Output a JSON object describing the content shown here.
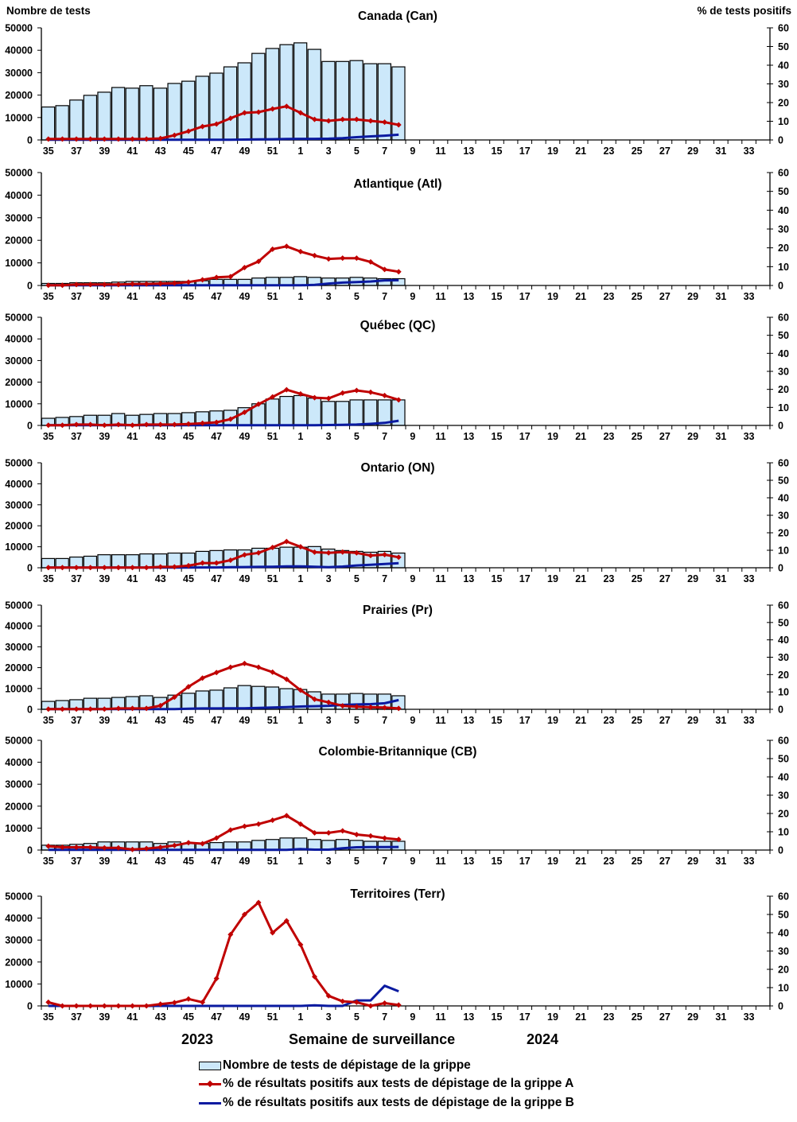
{
  "left_axis_title": "Nombre de tests",
  "right_axis_title": "% de tests positifs",
  "footer": {
    "year_left": "2023",
    "xlabel": "Semaine de surveillance",
    "year_right": "2024"
  },
  "legend": {
    "bars": "Nombre de tests de dépistage de la grippe",
    "line_a": "% de résultats positifs aux tests de dépistage de la grippe A",
    "line_b": "% de résultats positifs aux tests de dépistage de la grippe B"
  },
  "colors": {
    "bar_fill": "#cce8fa",
    "bar_stroke": "#000000",
    "line_a": "#c00000",
    "line_b": "#0a1aa0"
  },
  "chart_data": [
    {
      "type": "bar+line",
      "title": "Canada (Can)",
      "weeks_all": [
        35,
        36,
        37,
        38,
        39,
        40,
        41,
        42,
        43,
        44,
        45,
        46,
        47,
        48,
        49,
        50,
        51,
        52,
        1,
        2,
        3,
        4,
        5,
        6,
        7,
        8,
        9,
        10,
        11,
        12,
        13,
        14,
        15,
        16,
        17,
        18,
        19,
        20,
        21,
        22,
        23,
        24,
        25,
        26,
        27,
        28,
        29,
        30,
        31,
        32,
        33,
        34
      ],
      "tick_labels": [
        "35",
        "37",
        "39",
        "41",
        "43",
        "45",
        "47",
        "49",
        "51",
        "1",
        "3",
        "5",
        "7",
        "9",
        "11",
        "13",
        "15",
        "17",
        "19",
        "21",
        "23",
        "25",
        "27",
        "29",
        "31",
        "33"
      ],
      "left_ylim": [
        0,
        50000
      ],
      "left_ticks": [
        "0",
        "10000",
        "20000",
        "30000",
        "40000",
        "50000"
      ],
      "right_ylim": [
        0,
        60
      ],
      "right_ticks": [
        "0",
        "10",
        "20",
        "30",
        "40",
        "50",
        "60"
      ],
      "tests": [
        14700,
        15300,
        17800,
        19900,
        21300,
        23400,
        23100,
        24200,
        23100,
        25200,
        26200,
        28400,
        29800,
        32600,
        34400,
        38600,
        40800,
        42500,
        43300,
        40400,
        35000,
        35000,
        35400,
        34000,
        34000,
        32600
      ],
      "pct_a": [
        0.5,
        0.5,
        0.5,
        0.5,
        0.5,
        0.5,
        0.5,
        0.5,
        0.8,
        2.5,
        4.7,
        7.2,
        8.5,
        11.6,
        14.5,
        14.9,
        16.6,
        18.0,
        14.5,
        11.0,
        10.2,
        11.0,
        11.0,
        10.2,
        9.5,
        8.1
      ],
      "pct_b": [
        0.1,
        0.1,
        0.1,
        0.1,
        0.1,
        0.1,
        0.1,
        0.1,
        0.1,
        0.1,
        0.1,
        0.1,
        0.1,
        0.1,
        0.2,
        0.3,
        0.4,
        0.5,
        0.6,
        0.6,
        0.7,
        1.0,
        1.5,
        1.9,
        2.3,
        2.8
      ]
    },
    {
      "type": "bar+line",
      "title": "Atlantique (Atl)",
      "left_ylim": [
        0,
        50000
      ],
      "left_ticks": [
        "0",
        "10000",
        "20000",
        "30000",
        "40000",
        "50000"
      ],
      "right_ylim": [
        0,
        60
      ],
      "right_ticks": [
        "0",
        "10",
        "20",
        "30",
        "40",
        "50",
        "60"
      ],
      "tests": [
        900,
        900,
        1200,
        1200,
        1200,
        1500,
        1800,
        1800,
        1800,
        1800,
        1800,
        2100,
        2700,
        2700,
        2700,
        3300,
        3600,
        3600,
        3900,
        3600,
        3300,
        3300,
        3600,
        3300,
        3000,
        3000
      ],
      "pct_a": [
        0.1,
        0.1,
        0.5,
        0.5,
        0.5,
        0.5,
        0.8,
        0.8,
        1.0,
        1.2,
        1.8,
        3.0,
        4.3,
        4.7,
        9.5,
        12.8,
        19.3,
        20.8,
        18.0,
        15.9,
        14.1,
        14.5,
        14.5,
        12.5,
        8.5,
        7.3
      ],
      "pct_b": [
        0.1,
        0.1,
        0.1,
        0.1,
        0.1,
        0.1,
        0.1,
        0.1,
        0.1,
        0.1,
        0.1,
        0.1,
        0.1,
        0.1,
        0.1,
        0.1,
        0.1,
        0.1,
        0.1,
        0.3,
        1.0,
        1.5,
        1.8,
        2.1,
        2.7,
        2.8
      ]
    },
    {
      "type": "bar+line",
      "title": "Québec (QC)",
      "left_ylim": [
        0,
        50000
      ],
      "left_ticks": [
        "0",
        "10000",
        "20000",
        "30000",
        "40000",
        "50000"
      ],
      "right_ylim": [
        0,
        60
      ],
      "right_ticks": [
        "0",
        "10",
        "20",
        "30",
        "40",
        "50",
        "60"
      ],
      "tests": [
        3300,
        3700,
        4100,
        4700,
        4700,
        5500,
        4700,
        5100,
        5500,
        5500,
        5900,
        6300,
        6700,
        7000,
        8200,
        10000,
        12200,
        13400,
        13800,
        12600,
        11100,
        11100,
        11800,
        11800,
        11800,
        11800
      ],
      "pct_a": [
        0.1,
        0.1,
        0.5,
        0.5,
        0.1,
        0.5,
        0.1,
        0.5,
        0.5,
        0.5,
        0.8,
        1.2,
        1.7,
        3.5,
        7.3,
        11.8,
        15.8,
        19.8,
        17.5,
        15.4,
        15.0,
        18.0,
        19.4,
        18.4,
        16.6,
        14.2
      ],
      "pct_b": [
        0.1,
        0.1,
        0.1,
        0.1,
        0.1,
        0.1,
        0.1,
        0.1,
        0.1,
        0.1,
        0.1,
        0.1,
        0.1,
        0.1,
        0.1,
        0.1,
        0.1,
        0.1,
        0.1,
        0.1,
        0.2,
        0.3,
        0.5,
        0.9,
        1.4,
        2.6
      ]
    },
    {
      "type": "bar+line",
      "title": "Ontario (ON)",
      "left_ylim": [
        0,
        50000
      ],
      "left_ticks": [
        "0",
        "10000",
        "20000",
        "30000",
        "40000",
        "50000"
      ],
      "right_ylim": [
        0,
        60
      ],
      "right_ticks": [
        "0",
        "10",
        "20",
        "30",
        "40",
        "50",
        "60"
      ],
      "tests": [
        4400,
        4400,
        5100,
        5500,
        6200,
        6200,
        6200,
        6600,
        6600,
        7000,
        7000,
        7800,
        8200,
        8500,
        8500,
        9300,
        9300,
        9800,
        9800,
        10100,
        8900,
        8200,
        7800,
        7400,
        7800,
        7000
      ],
      "pct_a": [
        0.1,
        0.1,
        0.1,
        0.1,
        0.1,
        0.1,
        0.1,
        0.1,
        0.5,
        0.5,
        1.2,
        2.7,
        2.7,
        4.3,
        7.4,
        8.5,
        11.6,
        15.0,
        12.0,
        8.9,
        8.5,
        9.0,
        8.5,
        7.0,
        7.5,
        6.0
      ],
      "pct_b": [
        0.1,
        0.1,
        0.1,
        0.1,
        0.1,
        0.1,
        0.1,
        0.1,
        0.1,
        0.1,
        0.1,
        0.2,
        0.2,
        0.3,
        0.4,
        0.5,
        0.6,
        0.8,
        0.8,
        0.6,
        0.3,
        0.7,
        1.3,
        1.7,
        2.2,
        2.6
      ]
    },
    {
      "type": "bar+line",
      "title": "Prairies (Pr)",
      "left_ylim": [
        0,
        50000
      ],
      "left_ticks": [
        "0",
        "10000",
        "20000",
        "30000",
        "40000",
        "50000"
      ],
      "right_ylim": [
        0,
        60
      ],
      "right_ticks": [
        "0",
        "10",
        "20",
        "30",
        "40",
        "50",
        "60"
      ],
      "tests": [
        3800,
        4200,
        4600,
        5300,
        5300,
        5700,
        6100,
        6500,
        5700,
        6800,
        7700,
        8800,
        9200,
        10300,
        11400,
        11000,
        10700,
        9900,
        9500,
        8400,
        7300,
        7300,
        7600,
        7300,
        7300,
        6500
      ],
      "pct_a": [
        0.1,
        0.1,
        0.1,
        0.1,
        0.1,
        0.5,
        0.5,
        0.5,
        2.1,
        7.0,
        13.0,
        18.0,
        21.2,
        24.2,
        26.4,
        24.2,
        21.4,
        17.3,
        11.0,
        5.8,
        4.0,
        2.0,
        1.5,
        1.2,
        1.0,
        0.5
      ],
      "pct_b": [
        0.1,
        0.1,
        0.1,
        0.1,
        0.1,
        0.1,
        0.1,
        0.1,
        0.1,
        0.1,
        0.3,
        0.5,
        0.5,
        0.6,
        0.6,
        0.8,
        1.0,
        1.3,
        1.6,
        1.8,
        2.0,
        2.5,
        2.8,
        3.0,
        3.5,
        5.3
      ]
    },
    {
      "type": "bar+line",
      "title": "Colombie-Britannique (CB)",
      "left_ylim": [
        0,
        50000
      ],
      "left_ticks": [
        "0",
        "10000",
        "20000",
        "30000",
        "40000",
        "50000"
      ],
      "right_ylim": [
        0,
        60
      ],
      "right_ticks": [
        "0",
        "10",
        "20",
        "30",
        "40",
        "50",
        "60"
      ],
      "tests": [
        2200,
        2200,
        2600,
        3000,
        3700,
        3700,
        3700,
        3700,
        3000,
        3700,
        3000,
        3000,
        3400,
        3700,
        3700,
        4400,
        4800,
        5500,
        5500,
        4800,
        4400,
        4800,
        4400,
        4000,
        4000,
        4000
      ],
      "pct_a": [
        2.1,
        1.5,
        1.5,
        1.5,
        1.2,
        1.2,
        0.3,
        0.8,
        1.5,
        2.5,
        4.0,
        3.5,
        6.6,
        11.0,
        13.0,
        14.2,
        16.3,
        18.8,
        14.2,
        9.4,
        9.4,
        10.5,
        8.5,
        7.7,
        6.5,
        5.8
      ],
      "pct_b": [
        0.1,
        0.1,
        0.1,
        0.1,
        0.1,
        0.1,
        0.1,
        0.1,
        0.1,
        0.1,
        0.1,
        0.1,
        0.1,
        0.1,
        0.1,
        0.1,
        0.1,
        0.1,
        0.5,
        0.2,
        0.2,
        1.0,
        1.5,
        1.6,
        1.6,
        1.7
      ]
    },
    {
      "type": "bar+line",
      "title": "Territoires (Terr)",
      "left_ylim": [
        0,
        50000
      ],
      "left_ticks": [
        "0",
        "10000",
        "20000",
        "30000",
        "40000",
        "50000"
      ],
      "right_ylim": [
        0,
        60
      ],
      "right_ticks": [
        "0",
        "10",
        "20",
        "30",
        "40",
        "50",
        "60"
      ],
      "tests": [
        0,
        0,
        0,
        0,
        0,
        0,
        0,
        0,
        0,
        0,
        0,
        0,
        0,
        0,
        0,
        0,
        0,
        0,
        0,
        0,
        0,
        0,
        0,
        0,
        0,
        0
      ],
      "pct_a": [
        2.0,
        0.0,
        0.0,
        0.0,
        0.0,
        0.0,
        0.0,
        0.0,
        1.0,
        1.8,
        3.8,
        2.0,
        15.0,
        39.0,
        50.0,
        56.5,
        40.0,
        46.5,
        33.5,
        16.0,
        5.5,
        2.5,
        2.0,
        0.0,
        1.5,
        0.5
      ],
      "pct_b": [
        0.0,
        0.0,
        0.0,
        0.0,
        0.0,
        0.0,
        0.0,
        0.0,
        0.0,
        0.0,
        0.0,
        0.0,
        0.0,
        0.0,
        0.0,
        0.0,
        0.0,
        0.0,
        0.0,
        0.3,
        0.0,
        0.0,
        3.0,
        3.0,
        11.0,
        8.0
      ]
    }
  ]
}
